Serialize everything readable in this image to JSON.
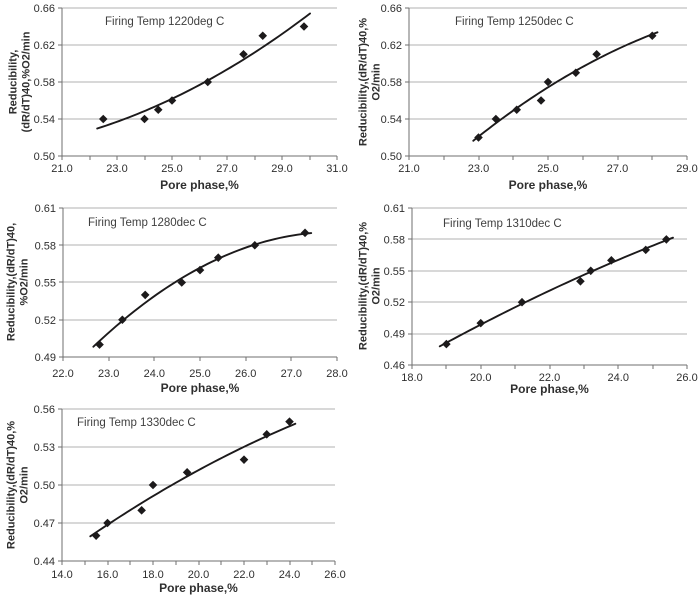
{
  "colors": {
    "series": "#1c1a1b",
    "grid": "#b2b2b2",
    "axis": "#6f6f6f",
    "text": "#2f2f2f",
    "title": "#3f3f3f",
    "background": "#ffffff"
  },
  "chart_data": [
    {
      "type": "scatter",
      "title": "Firing Temp 1220deg C",
      "xlabel": "Pore phase,%",
      "ylabel_line1": "Reducibility,",
      "ylabel_line2": "(dR/dT)40,%O2/min",
      "x": [
        22.5,
        24.0,
        24.5,
        25.0,
        26.3,
        27.6,
        28.3,
        29.8
      ],
      "y": [
        0.54,
        0.54,
        0.55,
        0.56,
        0.58,
        0.61,
        0.63,
        0.64
      ],
      "xlim": [
        21.0,
        31.0
      ],
      "ylim": [
        0.5,
        0.66
      ],
      "xticks": [
        "21.0",
        "23.0",
        "25.0",
        "27.0",
        "29.0",
        "31.0"
      ],
      "yticks": [
        "0.50",
        "0.54",
        "0.58",
        "0.62",
        "0.66"
      ],
      "x_minor_step": 1.0,
      "trendline": "polynomial",
      "grid": "horizontal-major",
      "legend": false,
      "marker": "diamond"
    },
    {
      "type": "scatter",
      "title": "Firing Temp 1250dec C",
      "xlabel": "Pore phase,%",
      "ylabel_line1": "Reducibility,(dR/dT)40,%",
      "ylabel_line2": "O2/min",
      "x": [
        23.0,
        23.5,
        24.1,
        24.8,
        25.0,
        25.8,
        26.4,
        28.0
      ],
      "y": [
        0.52,
        0.54,
        0.55,
        0.56,
        0.58,
        0.59,
        0.61,
        0.63
      ],
      "xlim": [
        21.0,
        29.0
      ],
      "ylim": [
        0.5,
        0.66
      ],
      "xticks": [
        "21.0",
        "23.0",
        "25.0",
        "27.0",
        "29.0"
      ],
      "yticks": [
        "0.50",
        "0.54",
        "0.58",
        "0.62",
        "0.66"
      ],
      "x_minor_step": 1.0,
      "trendline": "polynomial",
      "grid": "horizontal-major",
      "legend": false,
      "marker": "diamond"
    },
    {
      "type": "scatter",
      "title": "Firing Temp 1280dec C",
      "xlabel": "Pore phase,%",
      "ylabel_line1": "Reducibility,(dR/dT)40,",
      "ylabel_line2": "%O2/min",
      "x": [
        22.8,
        23.3,
        23.8,
        24.6,
        25.0,
        25.4,
        26.2,
        27.3
      ],
      "y": [
        0.5,
        0.52,
        0.54,
        0.55,
        0.56,
        0.57,
        0.58,
        0.59
      ],
      "xlim": [
        22.0,
        28.0
      ],
      "ylim": [
        0.49,
        0.61
      ],
      "xticks": [
        "22.0",
        "23.0",
        "24.0",
        "25.0",
        "26.0",
        "27.0",
        "28.0"
      ],
      "yticks": [
        "0.49",
        "0.52",
        "0.55",
        "0.58",
        "0.61"
      ],
      "x_minor_step": 1.0,
      "trendline": "polynomial",
      "grid": "horizontal-major",
      "legend": false,
      "marker": "diamond"
    },
    {
      "type": "scatter",
      "title": "Firing Temp 1310dec C",
      "xlabel": "Pore phase,%",
      "ylabel_line1": "Reducibility,(dR/dT)40,%",
      "ylabel_line2": "O2/min",
      "x": [
        19.0,
        20.0,
        21.2,
        22.9,
        23.2,
        23.8,
        24.8,
        25.4
      ],
      "y": [
        0.48,
        0.5,
        0.52,
        0.54,
        0.55,
        0.56,
        0.57,
        0.58
      ],
      "xlim": [
        18.0,
        26.0
      ],
      "ylim": [
        0.46,
        0.61
      ],
      "xticks": [
        "18.0",
        "20.0",
        "22.0",
        "24.0",
        "26.0"
      ],
      "yticks": [
        "0.46",
        "0.49",
        "0.52",
        "0.55",
        "0.58",
        "0.61"
      ],
      "x_minor_step": 1.0,
      "trendline": "polynomial",
      "grid": "horizontal-major",
      "legend": false,
      "marker": "diamond"
    },
    {
      "type": "scatter",
      "title": "Firing Temp 1330dec C",
      "xlabel": "Pore phase,%",
      "ylabel_line1": "Reducibility,(dR/dT)40,%",
      "ylabel_line2": "O2/min",
      "x": [
        15.5,
        16.0,
        17.5,
        18.0,
        19.5,
        22.0,
        23.0,
        24.0
      ],
      "y": [
        0.46,
        0.47,
        0.48,
        0.5,
        0.51,
        0.52,
        0.54,
        0.55
      ],
      "xlim": [
        14.0,
        26.0
      ],
      "ylim": [
        0.44,
        0.56
      ],
      "xticks": [
        "14.0",
        "16.0",
        "18.0",
        "20.0",
        "22.0",
        "24.0",
        "26.0"
      ],
      "yticks": [
        "0.44",
        "0.47",
        "0.50",
        "0.53",
        "0.56"
      ],
      "x_minor_step": 1.0,
      "trendline": "polynomial",
      "grid": "horizontal-major",
      "legend": false,
      "marker": "diamond"
    }
  ]
}
